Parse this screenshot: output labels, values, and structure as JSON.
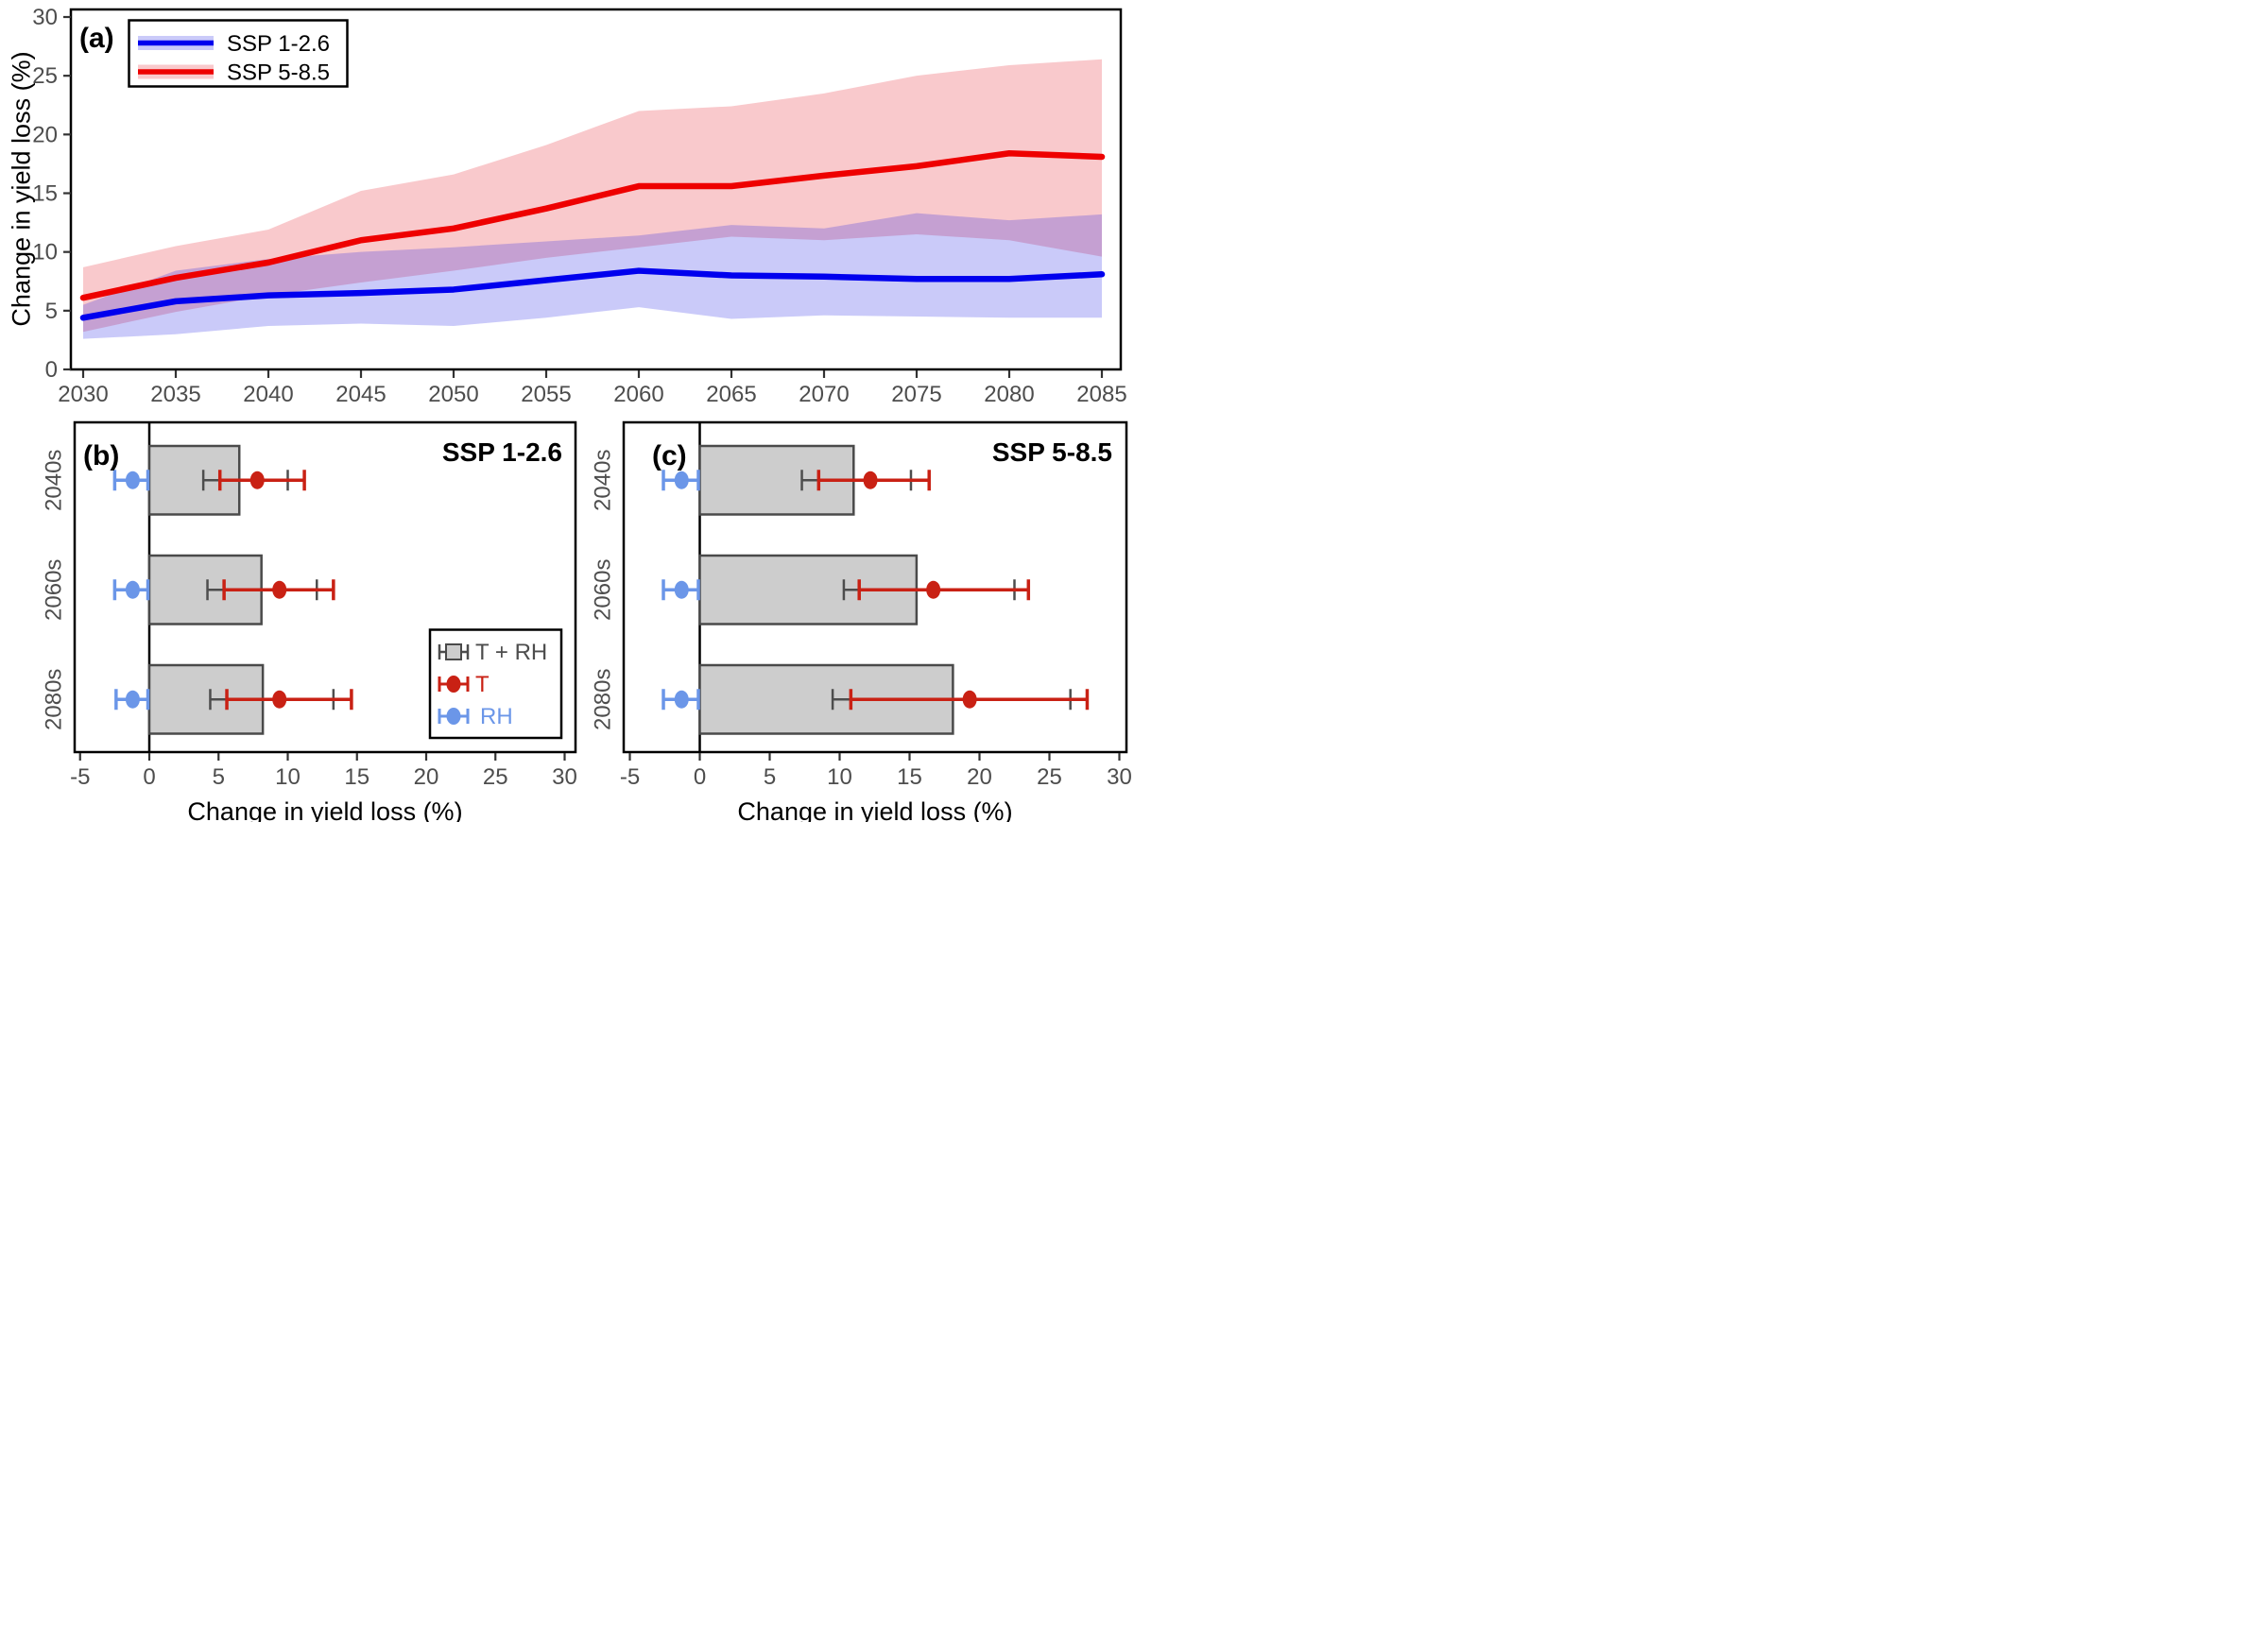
{
  "figure": {
    "panels": [
      {
        "id": "a",
        "label": "(a)"
      },
      {
        "id": "b",
        "label": "(b)"
      },
      {
        "id": "c",
        "label": "(c)"
      }
    ]
  },
  "colors": {
    "ssp126_line": "#0000EE",
    "ssp126_band_fill": "rgba(30,30,230,0.235)",
    "ssp585_line": "#EE0000",
    "ssp585_band_fill": "rgba(230,30,40,0.24)",
    "bar_fill": "#CDCDCD",
    "bar_border": "#4A4A4A",
    "gray_error": "#4D4D4D",
    "t_color": "#C92114",
    "rh_color": "#6B96E8",
    "tick_label": "#4D4D4D",
    "axis": "#000000",
    "tick_mark": "#333333"
  },
  "chart_data": [
    {
      "id": "a",
      "type": "line",
      "panel_label": "(a)",
      "ylabel": "Change in yield loss (%)",
      "ylim": [
        0,
        30
      ],
      "xlim": [
        2030,
        2085
      ],
      "yticks": [
        0,
        5,
        10,
        15,
        20,
        25,
        30
      ],
      "xticks": [
        2030,
        2035,
        2040,
        2045,
        2050,
        2055,
        2060,
        2065,
        2070,
        2075,
        2080,
        2085
      ],
      "grid": false,
      "legend_position": "top-left",
      "x": [
        2030,
        2035,
        2040,
        2045,
        2050,
        2055,
        2060,
        2065,
        2070,
        2075,
        2080,
        2085
      ],
      "series": [
        {
          "name": "SSP 5-8.5",
          "color": "#EE0000",
          "band_fill": "rgba(230,30,40,0.24)",
          "values": [
            6.1,
            7.8,
            9.1,
            11.0,
            12.0,
            13.7,
            15.6,
            15.6,
            16.5,
            17.3,
            18.4,
            18.1
          ],
          "band_lower": [
            3.2,
            4.9,
            6.3,
            7.4,
            8.4,
            9.5,
            10.4,
            11.3,
            11.0,
            11.5,
            11.0,
            9.6
          ],
          "band_upper": [
            8.7,
            10.5,
            11.9,
            15.2,
            16.6,
            19.1,
            22.0,
            22.4,
            23.5,
            25.0,
            25.9,
            26.4
          ]
        },
        {
          "name": "SSP 1-2.6",
          "color": "#0000EE",
          "band_fill": "rgba(30,30,230,0.235)",
          "values": [
            4.4,
            5.8,
            6.3,
            6.5,
            6.8,
            7.6,
            8.4,
            8.0,
            7.9,
            7.7,
            7.7,
            8.1
          ],
          "band_lower": [
            2.6,
            3.0,
            3.7,
            3.9,
            3.7,
            4.4,
            5.3,
            4.3,
            4.6,
            4.5,
            4.4,
            4.4
          ],
          "band_upper": [
            5.5,
            8.4,
            9.4,
            10.0,
            10.4,
            10.9,
            11.4,
            12.3,
            12.0,
            13.3,
            12.7,
            13.2
          ]
        }
      ],
      "legend_order": [
        "SSP 1-2.6",
        "SSP 5-8.5"
      ]
    },
    {
      "id": "b",
      "type": "bar",
      "orientation": "horizontal",
      "panel_label": "(b)",
      "title": "SSP 1-2.6",
      "xlabel": "Change in yield loss (%)",
      "xlim": [
        -5,
        30
      ],
      "xticks": [
        -5,
        0,
        5,
        10,
        15,
        20,
        25,
        30
      ],
      "categories": [
        "2040s",
        "2060s",
        "2080s"
      ],
      "bar_series": {
        "name": "T + RH",
        "values": [
          6.5,
          8.1,
          8.2
        ],
        "ci_low": [
          3.9,
          4.2,
          4.4
        ],
        "ci_high": [
          10.0,
          12.1,
          13.3
        ]
      },
      "point_series": [
        {
          "name": "T",
          "values": [
            7.8,
            9.4,
            9.4
          ],
          "ci_low": [
            5.1,
            5.4,
            5.6
          ],
          "ci_high": [
            11.2,
            13.3,
            14.6
          ]
        },
        {
          "name": "RH",
          "values": [
            -1.2,
            -1.2,
            -1.2
          ],
          "ci_low": [
            -2.5,
            -2.5,
            -2.4
          ],
          "ci_high": [
            -0.1,
            -0.1,
            -0.1
          ]
        }
      ],
      "legend": [
        {
          "label": "T + RH",
          "marker": "gray-square-errorbar"
        },
        {
          "label": "T",
          "marker": "red-dot-errorbar"
        },
        {
          "label": "RH",
          "marker": "blue-dot-errorbar"
        }
      ],
      "show_legend": true
    },
    {
      "id": "c",
      "type": "bar",
      "orientation": "horizontal",
      "panel_label": "(c)",
      "title": "SSP 5-8.5",
      "xlabel": "Change in yield loss (%)",
      "xlim": [
        -5,
        30
      ],
      "xticks": [
        -5,
        0,
        5,
        10,
        15,
        20,
        25,
        30
      ],
      "categories": [
        "2040s",
        "2060s",
        "2080s"
      ],
      "bar_series": {
        "name": "T + RH",
        "values": [
          11.0,
          15.5,
          18.1
        ],
        "ci_low": [
          7.3,
          10.3,
          9.5
        ],
        "ci_high": [
          15.1,
          22.5,
          26.5
        ]
      },
      "point_series": [
        {
          "name": "T",
          "values": [
            12.2,
            16.7,
            19.3
          ],
          "ci_low": [
            8.5,
            11.4,
            10.8
          ],
          "ci_high": [
            16.4,
            23.5,
            27.7
          ]
        },
        {
          "name": "RH",
          "values": [
            -1.3,
            -1.3,
            -1.3
          ],
          "ci_low": [
            -2.6,
            -2.6,
            -2.6
          ],
          "ci_high": [
            -0.1,
            -0.1,
            -0.1
          ]
        }
      ],
      "legend": [],
      "show_legend": false
    }
  ]
}
